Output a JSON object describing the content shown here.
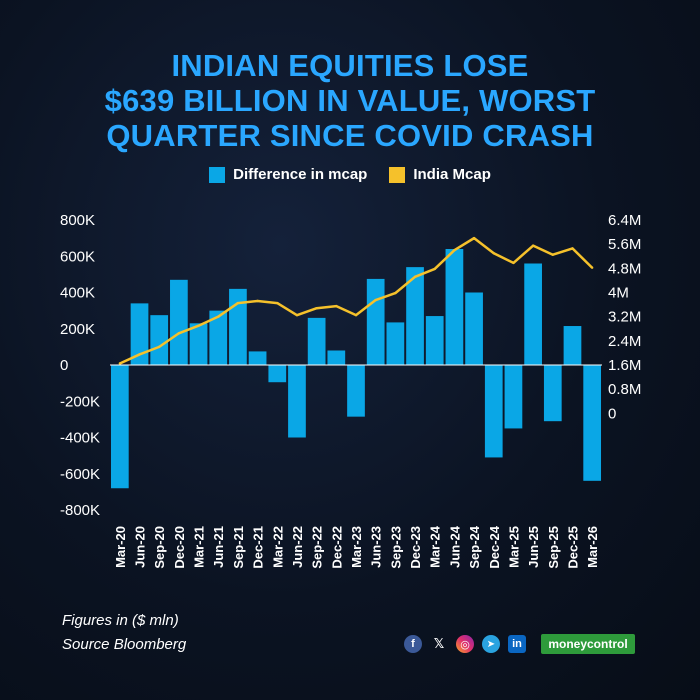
{
  "title_lines": [
    "INDIAN EQUITIES LOSE",
    "$639 BILLION IN VALUE, WORST",
    "QUARTER SINCE COVID CRASH"
  ],
  "legend": {
    "bar_label": "Difference in mcap",
    "line_label": "India Mcap"
  },
  "colors": {
    "bar": "#0aa7e6",
    "line": "#f5c12b",
    "title": "#2aa7ff"
  },
  "footnote": {
    "units": "Figures in ($ mln)",
    "source": "Source Bloomberg"
  },
  "social_icons": [
    "facebook-icon",
    "x-icon",
    "instagram-icon",
    "telegram-icon",
    "linkedin-icon"
  ],
  "social_glyphs": {
    "facebook": "f",
    "x": "𝕏",
    "instagram": "◎",
    "telegram": "➤",
    "linkedin": "in"
  },
  "brand": "moneycontrol",
  "chart_data": {
    "type": "bar+line",
    "categories": [
      "Mar-20",
      "Jun-20",
      "Sep-20",
      "Dec-20",
      "Mar-21",
      "Jun-21",
      "Sep-21",
      "Dec-21",
      "Mar-22",
      "Jun-22",
      "Sep-22",
      "Dec-22",
      "Mar-23",
      "Jun-23",
      "Sep-23",
      "Dec-23",
      "Mar-24",
      "Jun-24",
      "Sep-24",
      "Dec-24",
      "Mar-25",
      "Jun-25",
      "Sep-25",
      "Dec-25",
      "Mar-26"
    ],
    "x_tick_labels": [
      "Mar-20",
      "Jun-20",
      "Sep-20",
      "Dec-20",
      "Mar-21",
      "Jun-21",
      "Sep-21",
      "Dec-21",
      "Mar-22",
      "Jun-22",
      "Sep-22",
      "Dec-22",
      "Mar-23",
      "Jun-23",
      "Sep-23",
      "Dec-23",
      "Mar-24",
      "Jun-24",
      "Sep-24",
      "Dec-24",
      "Mar-25",
      "Jun-25",
      "Sep-25",
      "Dec-25",
      "Mar-26"
    ],
    "series": [
      {
        "name": "Difference in mcap",
        "type": "bar",
        "axis": "left",
        "values": [
          -680000,
          340000,
          275000,
          470000,
          230000,
          300000,
          420000,
          75000,
          -95000,
          -400000,
          260000,
          80000,
          -285000,
          475000,
          235000,
          540000,
          270000,
          640000,
          400000,
          -510000,
          -350000,
          560000,
          -310000,
          215000,
          -639000
        ]
      },
      {
        "name": "India Mcap",
        "type": "line",
        "axis": "right",
        "values": [
          1650000,
          1950000,
          2200000,
          2650000,
          2900000,
          3200000,
          3650000,
          3720000,
          3650000,
          3250000,
          3480000,
          3550000,
          3250000,
          3750000,
          3980000,
          4520000,
          4780000,
          5400000,
          5800000,
          5300000,
          4980000,
          5550000,
          5250000,
          5460000,
          4820000
        ]
      }
    ],
    "y_left": {
      "ticks": [
        800000,
        600000,
        400000,
        200000,
        0,
        -200000,
        -400000,
        -600000,
        -800000
      ],
      "tick_labels": [
        "800K",
        "600K",
        "400K",
        "200K",
        "0",
        "-200K",
        "-400K",
        "-600K",
        "-800K"
      ],
      "range": [
        -800000,
        800000
      ]
    },
    "y_right": {
      "ticks": [
        6400000,
        5600000,
        4800000,
        4000000,
        3200000,
        2400000,
        1600000,
        800000,
        0
      ],
      "tick_labels": [
        "6.4M",
        "5.6M",
        "4.8M",
        "4M",
        "3.2M",
        "2.4M",
        "1.6M",
        "0.8M",
        "0"
      ],
      "range": [
        -3200000,
        6400000
      ]
    },
    "grid": false,
    "legend_position": "top-center"
  }
}
